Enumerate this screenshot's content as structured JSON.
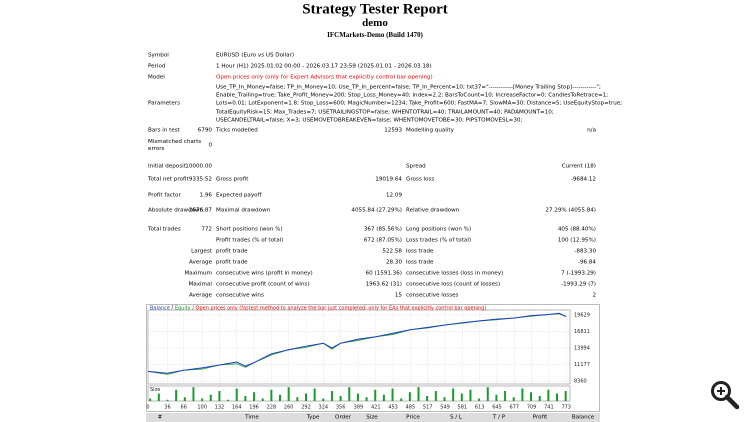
{
  "header": {
    "title": "Strategy Tester Report",
    "subtitle": "demo",
    "server": "IFCMarkets-Demo (Build 1470)"
  },
  "settings": [
    [
      "Symbol",
      "EURUSD (Euro vs US Dollar)"
    ],
    [
      "Period",
      "1 Hour (H1) 2025.01.02 00:00 - 2026.03.17 23:59 (2025.01.01 - 2026.03.18)"
    ],
    [
      "Model",
      "Open prices only (only for Expert Advisors that explicitly control bar opening)"
    ],
    [
      "Parameters",
      [
        "Use_TP_In_Money=false; TP_In_Money=10; Use_TP_In_percent=false; TP_In_Percent=10; txt37=\"------------[Money Trailing Stop]------------\";",
        "Enable_Trailing=true; Take_Profit_Money=200; Stop_Loss_Money=40; index=2.2; BarsToCount=10; IncreaseFactor=0; CandlesToRetrace=1;",
        "Lots=0.01; LotExponent=1.8; Stop_Loss=600; MagicNumber=1234; Take_Profit=600; FastMA=7; SlowMA=30; Distance=5; UseEquityStop=true;",
        "TotalEquityRisk=15; Max_Trades=7; USETRAILINGSTOP=false; WHENTOTRAIL=40; TRAILAMOUNT=40; PADAMOUNT=10;",
        "USECANDELTRAIL=false; X=3; USEMOVETOBREAKEVEN=false; WHENTOMOVETOBE=30; PIPSTOMOVESL=30;"
      ]
    ]
  ],
  "results": [
    [
      [
        "Bars in test",
        "6790"
      ],
      [
        "Ticks modelled",
        "12593"
      ],
      [
        "Modelling quality",
        "n/a"
      ]
    ],
    [
      [
        "Mismatched charts errors",
        "0"
      ],
      null,
      null
    ],
    [
      [
        "Initial deposit",
        "10000.00"
      ],
      null,
      [
        "Spread",
        "Current (18)"
      ]
    ],
    [
      [
        "Total net profit",
        "9335.52"
      ],
      [
        "Gross profit",
        "19019.64"
      ],
      [
        "Gross loss",
        "-9684.12"
      ]
    ],
    [
      [
        "Profit factor",
        "1.96"
      ],
      [
        "Expected payoff",
        "12.09"
      ],
      null
    ],
    [
      [
        "Absolute drawdown",
        "2676.87"
      ],
      [
        "Maximal drawdown",
        "4055.84 (27.29%)"
      ],
      [
        "Relative drawdown",
        "27.29% (4055.84)"
      ]
    ],
    [
      [
        "Total trades",
        "772"
      ],
      [
        "Short positions (won %)",
        "367 (85.56%)"
      ],
      [
        "Long positions (won %)",
        "405 (88.40%)"
      ]
    ],
    [
      null,
      [
        "Profit trades (% of total)",
        "672 (87.05%)"
      ],
      [
        "Loss trades (% of total)",
        "100 (12.95%)"
      ]
    ],
    [
      [
        "Largest"
      ],
      [
        "profit trade",
        "522.58"
      ],
      [
        "loss trade",
        "-883.30"
      ]
    ],
    [
      [
        "Average"
      ],
      [
        "profit trade",
        "28.30"
      ],
      [
        "loss trade",
        "-96.84"
      ]
    ],
    [
      [
        "Maximum"
      ],
      [
        "consecutive wins (profit in money)",
        "60 (1591.36)"
      ],
      [
        "consecutive losses (loss in money)",
        "7 (-1993.29)"
      ]
    ],
    [
      [
        "Maximal"
      ],
      [
        "consecutive profit (count of wins)",
        "1963.62 (31)"
      ],
      [
        "consecutive loss (count of losses)",
        "-1993.29 (7)"
      ]
    ],
    [
      [
        "Average"
      ],
      [
        "consecutive wins",
        "15"
      ],
      [
        "consecutive losses",
        "2"
      ]
    ]
  ],
  "chart_data": [
    {
      "type": "line",
      "note": "/ Open prices only (fastest method to analyze the bar just completed, only for EAs that explicitly control bar opening)",
      "x": [
        0,
        36,
        66,
        100,
        132,
        164,
        180,
        196,
        228,
        260,
        292,
        324,
        340,
        356,
        389,
        421,
        453,
        485,
        517,
        549,
        581,
        613,
        645,
        677,
        709,
        741,
        760,
        773
      ],
      "series": [
        {
          "name": "Balance",
          "color": "#1f3fbf",
          "values": [
            10000,
            9700,
            10200,
            10600,
            11100,
            11600,
            10900,
            11500,
            13000,
            13700,
            14300,
            14800,
            14000,
            14800,
            15500,
            15900,
            16500,
            17100,
            17500,
            17900,
            18300,
            18600,
            18900,
            19100,
            19500,
            19700,
            19900,
            19335
          ]
        },
        {
          "name": "Equity",
          "color": "#1a9a2a",
          "values": [
            10000,
            9500,
            10200,
            10400,
            11100,
            11300,
            10700,
            11500,
            12800,
            13700,
            14100,
            14800,
            13800,
            14800,
            15300,
            15900,
            16300,
            17100,
            17400,
            17900,
            18200,
            18600,
            18800,
            19100,
            19400,
            19700,
            19800,
            19335
          ]
        }
      ],
      "xlim": [
        0,
        780
      ],
      "ylim": [
        7860,
        20460
      ],
      "yticks": [
        19629,
        16811,
        13994,
        11177,
        8360
      ],
      "grid": true
    },
    {
      "type": "bar",
      "title": "Size",
      "color": "#1a9a2a",
      "x": [
        4,
        20,
        36,
        52,
        68,
        84,
        100,
        116,
        132,
        148,
        164,
        180,
        196,
        212,
        228,
        244,
        260,
        276,
        292,
        308,
        324,
        340,
        356,
        372,
        388,
        404,
        420,
        436,
        452,
        468,
        484,
        500,
        516,
        532,
        548,
        564,
        580,
        596,
        612,
        628,
        644,
        660,
        676,
        692,
        708,
        724,
        740,
        756,
        772
      ],
      "values": [
        0.02,
        0.06,
        0.01,
        0.09,
        0.03,
        0.11,
        0.02,
        0.05,
        0.08,
        0.01,
        0.1,
        0.04,
        0.07,
        0.02,
        0.09,
        0.05,
        0.11,
        0.03,
        0.06,
        0.1,
        0.02,
        0.08,
        0.04,
        0.11,
        0.06,
        0.03,
        0.09,
        0.05,
        0.1,
        0.02,
        0.07,
        0.11,
        0.04,
        0.08,
        0.03,
        0.1,
        0.06,
        0.09,
        0.02,
        0.11,
        0.05,
        0.08,
        0.03,
        0.1,
        0.07,
        0.04,
        0.09,
        0.06,
        0.08
      ],
      "xlim": [
        0,
        780
      ],
      "ylim": [
        0,
        0.12
      ],
      "xticks": [
        0,
        36,
        66,
        100,
        132,
        164,
        196,
        228,
        260,
        292,
        324,
        356,
        389,
        421,
        453,
        485,
        517,
        549,
        581,
        613,
        645,
        677,
        709,
        741,
        773
      ]
    }
  ],
  "deals_header": [
    "#",
    "Time",
    "Type",
    "Order",
    "Size",
    "Price",
    "S / L",
    "T / P",
    "Profit",
    "Balance"
  ]
}
